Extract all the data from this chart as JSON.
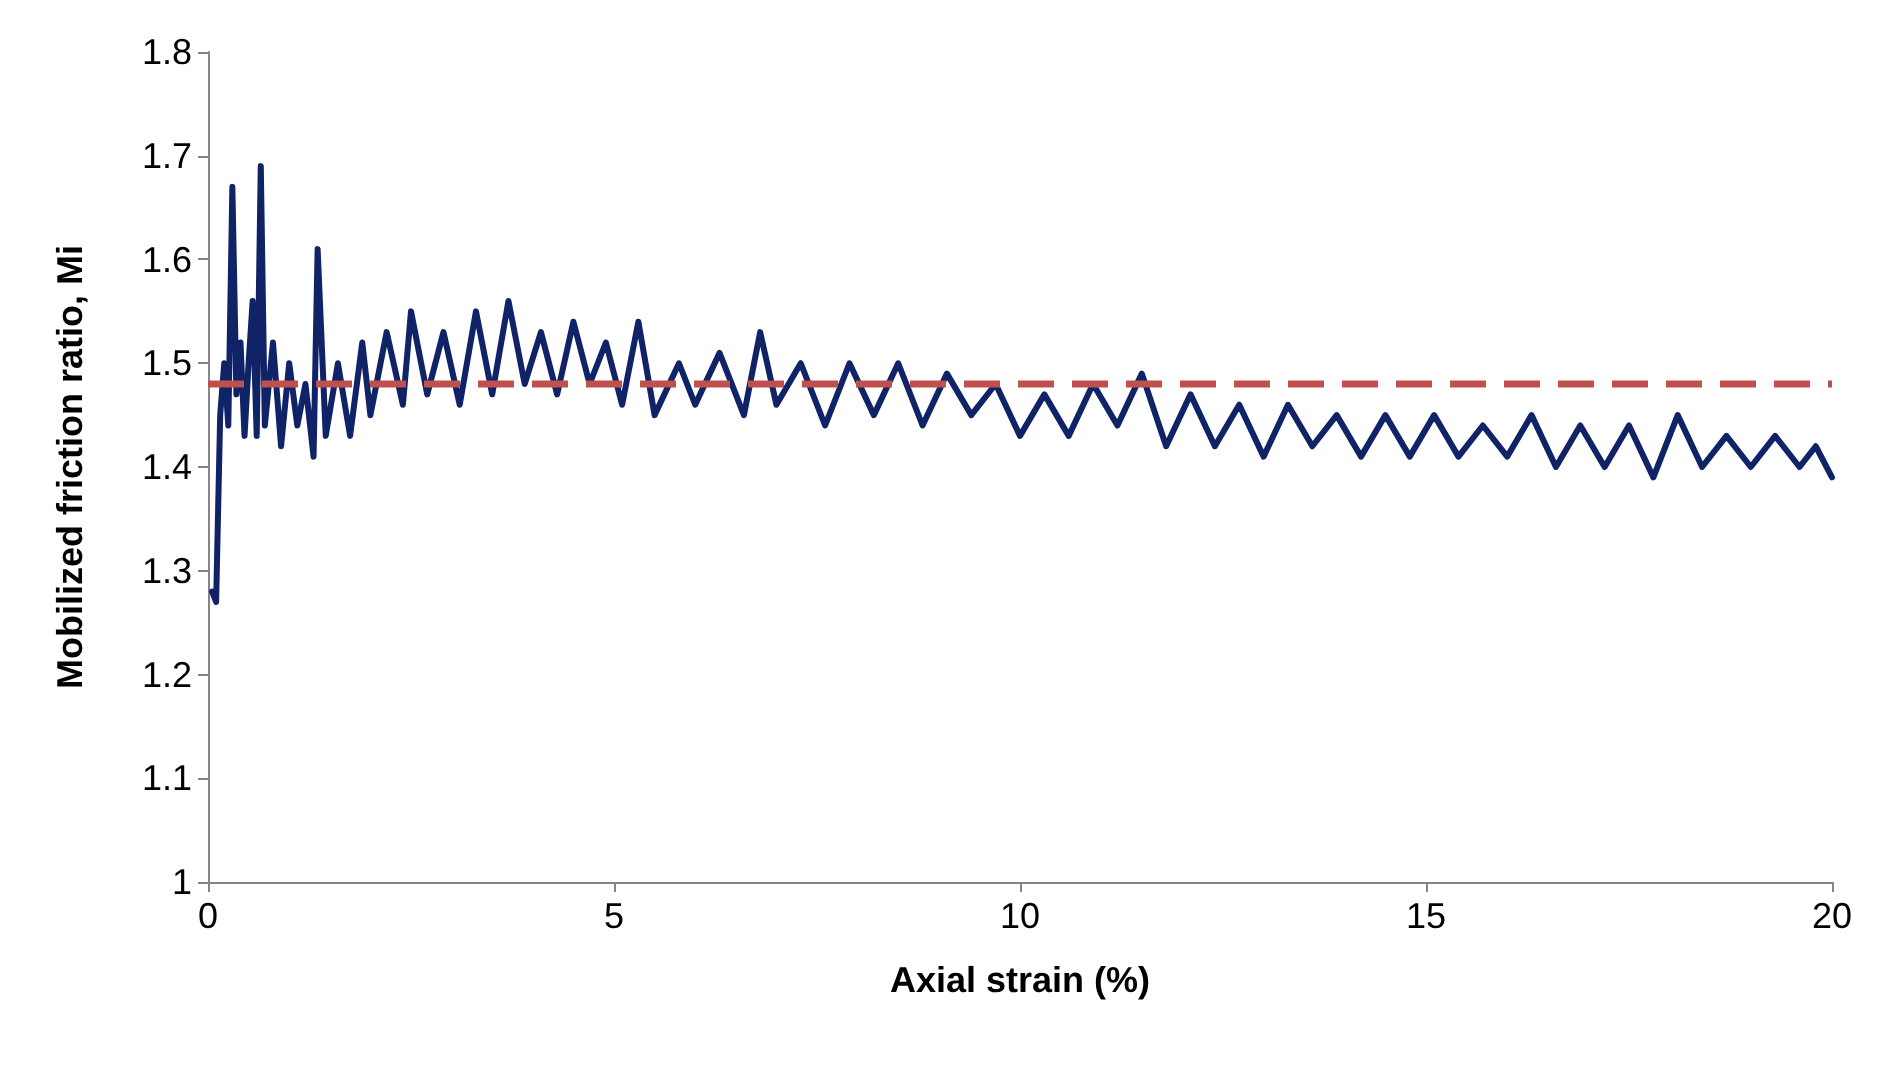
{
  "chart_data": {
    "type": "line",
    "xlabel": "Axial strain (%)",
    "ylabel": "Mobilized friction ratio, Mi",
    "xlim": [
      0,
      20
    ],
    "xticks": [
      0,
      5,
      10,
      15,
      20
    ],
    "ylim": [
      1,
      1.8
    ],
    "yticks": [
      {
        "value": 1,
        "label": "1"
      },
      {
        "value": 1.1,
        "label": "1.1"
      },
      {
        "value": 1.2,
        "label": "1.2"
      },
      {
        "value": 1.3,
        "label": "1.3"
      },
      {
        "value": 1.4,
        "label": "1.4"
      },
      {
        "value": 1.5,
        "label": "1.5"
      },
      {
        "value": 1.6,
        "label": "1.6"
      },
      {
        "value": 1.7,
        "label": "1.7"
      },
      {
        "value": 1.8,
        "label": "1.8"
      }
    ],
    "grid": false,
    "marker": "none",
    "line_style": "solid",
    "series": [
      {
        "color": "#0f2366",
        "x": [
          0.05,
          0.1,
          0.15,
          0.2,
          0.25,
          0.3,
          0.35,
          0.4,
          0.45,
          0.5,
          0.55,
          0.6,
          0.65,
          0.7,
          0.8,
          0.9,
          1.0,
          1.1,
          1.2,
          1.3,
          1.35,
          1.45,
          1.6,
          1.75,
          1.9,
          2.0,
          2.2,
          2.4,
          2.5,
          2.7,
          2.9,
          3.1,
          3.3,
          3.5,
          3.7,
          3.9,
          4.1,
          4.3,
          4.5,
          4.7,
          4.9,
          5.1,
          5.3,
          5.5,
          5.8,
          6.0,
          6.3,
          6.6,
          6.8,
          7.0,
          7.3,
          7.6,
          7.9,
          8.2,
          8.5,
          8.8,
          9.1,
          9.4,
          9.7,
          10.0,
          10.3,
          10.6,
          10.9,
          11.2,
          11.5,
          11.8,
          12.1,
          12.4,
          12.7,
          13.0,
          13.3,
          13.6,
          13.9,
          14.2,
          14.5,
          14.8,
          15.1,
          15.4,
          15.7,
          16.0,
          16.3,
          16.6,
          16.9,
          17.2,
          17.5,
          17.8,
          18.1,
          18.4,
          18.7,
          19.0,
          19.3,
          19.6,
          19.8,
          20.0
        ],
        "values": [
          1.28,
          1.27,
          1.45,
          1.5,
          1.44,
          1.67,
          1.47,
          1.52,
          1.43,
          1.5,
          1.56,
          1.43,
          1.69,
          1.44,
          1.52,
          1.42,
          1.5,
          1.44,
          1.48,
          1.41,
          1.61,
          1.43,
          1.5,
          1.43,
          1.52,
          1.45,
          1.53,
          1.46,
          1.55,
          1.47,
          1.53,
          1.46,
          1.55,
          1.47,
          1.56,
          1.48,
          1.53,
          1.47,
          1.54,
          1.48,
          1.52,
          1.46,
          1.54,
          1.45,
          1.5,
          1.46,
          1.51,
          1.45,
          1.53,
          1.46,
          1.5,
          1.44,
          1.5,
          1.45,
          1.5,
          1.44,
          1.49,
          1.45,
          1.48,
          1.43,
          1.47,
          1.43,
          1.48,
          1.44,
          1.49,
          1.42,
          1.47,
          1.42,
          1.46,
          1.41,
          1.46,
          1.42,
          1.45,
          1.41,
          1.45,
          1.41,
          1.45,
          1.41,
          1.44,
          1.41,
          1.45,
          1.4,
          1.44,
          1.4,
          1.44,
          1.39,
          1.45,
          1.4,
          1.43,
          1.4,
          1.43,
          1.4,
          1.42,
          1.39
        ]
      }
    ],
    "ref_lines": [
      {
        "axis": "y",
        "value": 1.48,
        "color": "#c0504d",
        "line_style": "dashed"
      }
    ]
  }
}
